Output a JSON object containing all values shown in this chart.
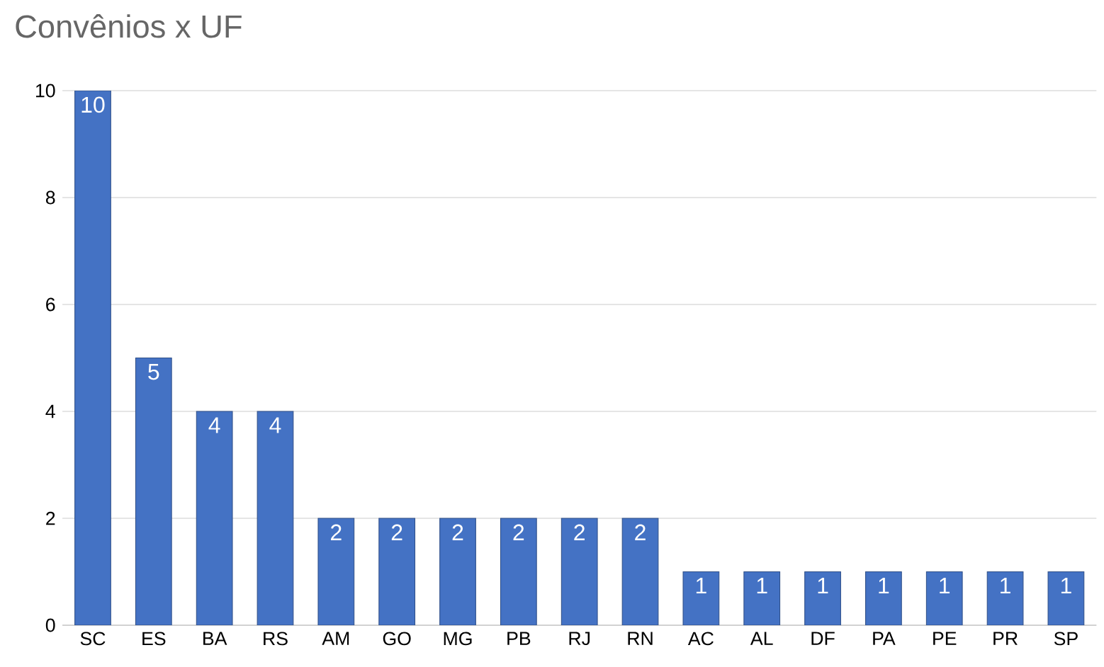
{
  "chart_data": {
    "type": "bar",
    "title": "Convênios x UF",
    "categories": [
      "SC",
      "ES",
      "BA",
      "RS",
      "AM",
      "GO",
      "MG",
      "PB",
      "RJ",
      "RN",
      "AC",
      "AL",
      "DF",
      "PA",
      "PE",
      "PR",
      "SP"
    ],
    "values": [
      10,
      5,
      4,
      4,
      2,
      2,
      2,
      2,
      2,
      2,
      1,
      1,
      1,
      1,
      1,
      1,
      1
    ],
    "color": "#4472c4",
    "ylim": [
      0,
      10
    ],
    "yticks": [
      0,
      2,
      4,
      6,
      8,
      10
    ],
    "grid": "y",
    "data_labels": true
  }
}
